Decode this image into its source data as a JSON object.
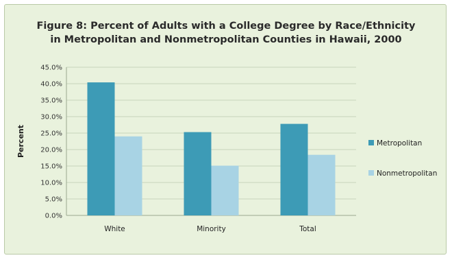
{
  "chart_data": {
    "type": "bar",
    "title_lines": [
      "Figure 8: Percent of Adults with a College Degree by Race/Ethnicity",
      "in Metropolitan and Nonmetropolitan Counties in Hawaii, 2000"
    ],
    "ylabel": "Percent",
    "xlabel": "",
    "categories": [
      "White",
      "Minority",
      "Total"
    ],
    "ylim": [
      0,
      45
    ],
    "ytick_step": 5,
    "ytick_labels": [
      "0.0%",
      "5.0%",
      "10.0%",
      "15.0%",
      "20.0%",
      "25.0%",
      "30.0%",
      "35.0%",
      "40.0%",
      "45.0%"
    ],
    "grid": true,
    "legend_position": "right",
    "series": [
      {
        "name": "Metropolitan",
        "color": "#3d9bb6",
        "values": [
          40.4,
          25.3,
          27.8
        ]
      },
      {
        "name": "Nonmetropolitan",
        "color": "#a8d3e4",
        "values": [
          24.0,
          15.1,
          18.4
        ]
      }
    ]
  }
}
